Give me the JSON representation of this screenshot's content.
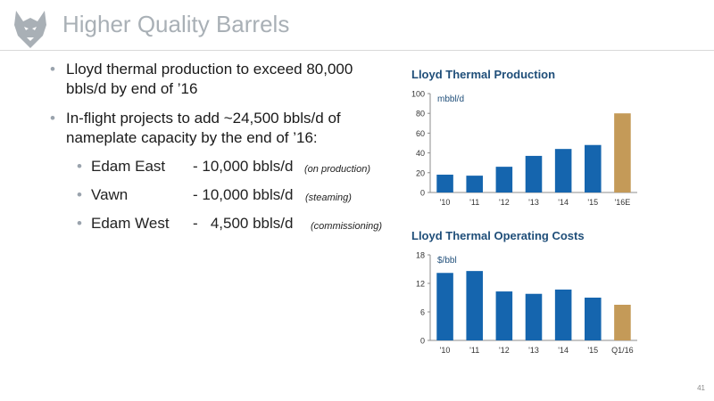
{
  "slide": {
    "title": "Higher Quality Barrels",
    "page_number": "41"
  },
  "logo": {
    "icon": "husky-head-icon",
    "color": "#a9b0b6"
  },
  "bullets": [
    {
      "text": "Lloyd thermal production to exceed 80,000 bbls/d by end of ’16"
    },
    {
      "text": "In-flight projects to add ~24,500 bbls/d of nameplate capacity by the end of ’16:"
    }
  ],
  "projects": [
    {
      "name": "Edam East",
      "capacity": "- 10,000 bbls/d",
      "status": "(on production)"
    },
    {
      "name": "Vawn",
      "capacity": "- 10,000 bbls/d",
      "status": "(steaming)"
    },
    {
      "name": "Edam West",
      "capacity": "-   4,500 bbls/d",
      "status": "(commissioning)"
    }
  ],
  "colors": {
    "actual": "#1565ae",
    "forecast": "#c49a58",
    "title": "#1f4e79",
    "bullet": "#9aa3ad"
  },
  "chart_data": [
    {
      "type": "bar",
      "title": "Lloyd Thermal Production",
      "ylabel": "mbbl/d",
      "categories": [
        "'10",
        "'11",
        "'12",
        "'13",
        "'14",
        "'15",
        "'16E"
      ],
      "values": [
        18,
        17,
        26,
        37,
        44,
        48,
        80
      ],
      "highlight_last": true,
      "ylim": [
        0,
        100
      ],
      "yticks": [
        0,
        20,
        40,
        60,
        80,
        100
      ],
      "grid": false
    },
    {
      "type": "bar",
      "title": "Lloyd Thermal Operating Costs",
      "ylabel": "$/bbl",
      "categories": [
        "'10",
        "'11",
        "'12",
        "'13",
        "'14",
        "'15",
        "Q1/16"
      ],
      "values": [
        14.2,
        14.6,
        10.3,
        9.8,
        10.7,
        9.0,
        7.5
      ],
      "highlight_last": true,
      "ylim": [
        0,
        18
      ],
      "yticks": [
        0,
        6,
        12,
        18
      ],
      "grid": false
    }
  ]
}
